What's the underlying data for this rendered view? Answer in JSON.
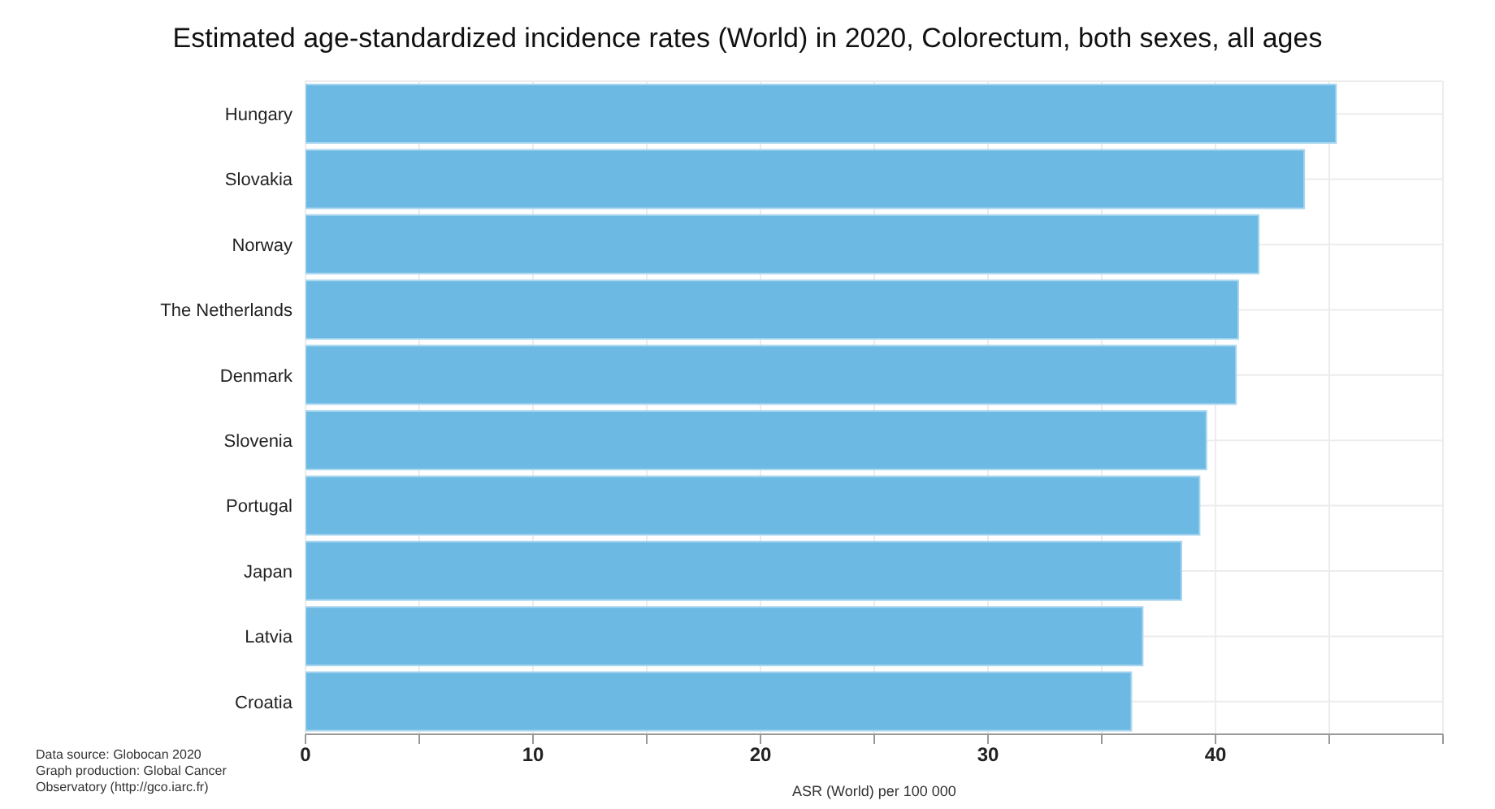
{
  "chart_data": {
    "type": "bar",
    "orientation": "horizontal",
    "title": "Estimated age-standardized incidence rates (World) in 2020, Colorectum, both sexes, all ages",
    "xlabel": "ASR (World) per 100 000",
    "categories": [
      "Hungary",
      "Slovakia",
      "Norway",
      "The Netherlands",
      "Denmark",
      "Slovenia",
      "Portugal",
      "Japan",
      "Latvia",
      "Croatia"
    ],
    "values": [
      45.3,
      43.9,
      41.9,
      41.0,
      40.9,
      39.6,
      39.3,
      38.5,
      36.8,
      36.3
    ],
    "color": "#6cb9e4",
    "xlim": [
      0,
      50
    ],
    "xticks": [
      0,
      {
        "value": 5,
        "label": null
      },
      10,
      {
        "value": 15,
        "label": null
      },
      20,
      {
        "value": 25,
        "label": null
      },
      30,
      {
        "value": 35,
        "label": null
      },
      40,
      {
        "value": 45,
        "label": null
      },
      {
        "value": 50,
        "label": null
      }
    ],
    "grid": true,
    "annotations": [
      "Data source: Globocan 2020",
      "Graph production: Global Cancer Observatory (http://gco.iarc.fr)"
    ]
  }
}
